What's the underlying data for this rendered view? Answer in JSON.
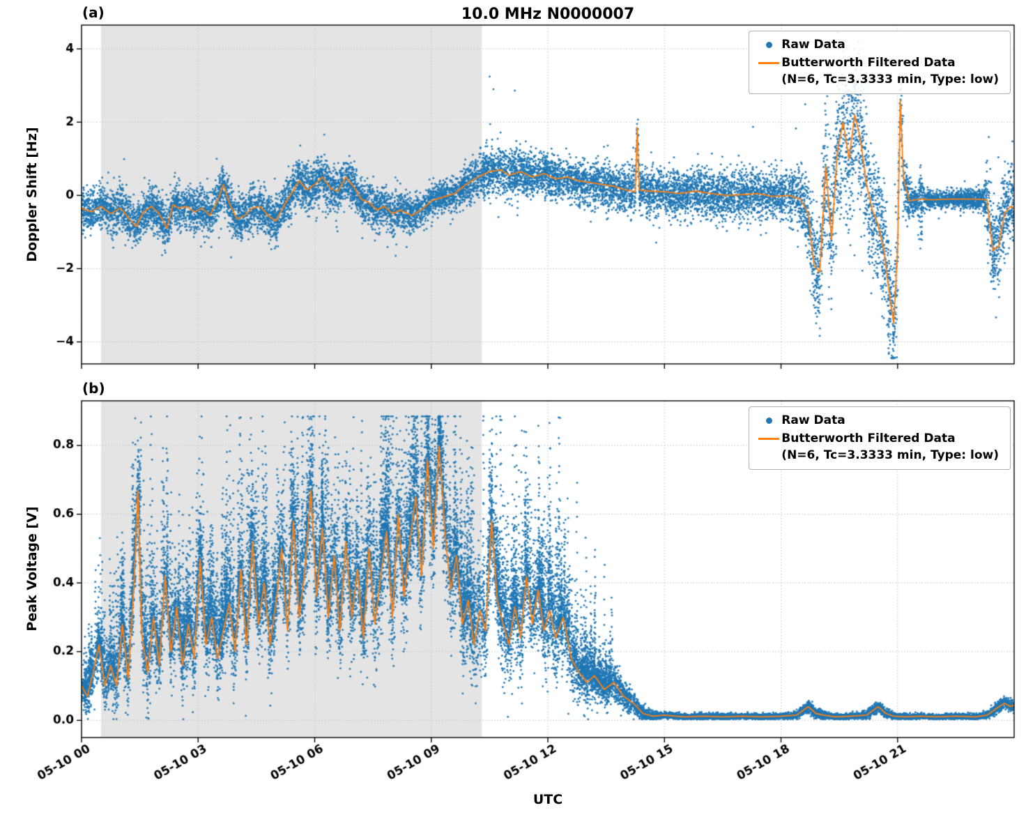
{
  "title": "10.0 MHz N0000007",
  "xlabel": "UTC",
  "legend": {
    "raw": "Raw Data",
    "filtered_label": "Butterworth Filtered Data",
    "filtered_params": "(N=6, Tc=3.3333 min, Type: low)"
  },
  "colors": {
    "raw": "#1f77b4",
    "filtered": "#ff7f0e",
    "shade": "#e4e4e4",
    "grid": "#c4c4c4",
    "axis": "#000000"
  },
  "chart_data": [
    {
      "id": "panel_a",
      "type": "scatter",
      "panel_label": "(a)",
      "ylabel": "Doppler Shift [Hz]",
      "xlabel": "UTC",
      "x_units": "hours after 05-10 00:00 UTC",
      "xlim": [
        0,
        24
      ],
      "ylim": [
        -4.6,
        4.65
      ],
      "yticks": {
        "values": [
          -4,
          -2,
          0,
          2,
          4
        ],
        "labels": [
          "−4",
          "−2",
          "0",
          "2",
          "4"
        ]
      },
      "xticks": {
        "values": [
          0,
          3,
          6,
          9,
          12,
          15,
          18,
          21
        ],
        "labels": [
          "05-10 00",
          "05-10 03",
          "05-10 06",
          "05-10 09",
          "05-10 12",
          "05-10 15",
          "05-10 18",
          "05-10 21"
        ]
      },
      "show_x_labels": false,
      "grid": true,
      "legend_position": "upper right",
      "shaded_region": [
        0.5,
        10.3
      ],
      "series_names": [
        "Raw Data",
        "Butterworth Filtered Data (N=6, Tc=3.3333 min, Type: low)"
      ],
      "filtered_line": {
        "t": [
          0,
          0.25,
          0.5,
          0.75,
          1.0,
          1.2,
          1.4,
          1.6,
          1.8,
          2.0,
          2.2,
          2.35,
          2.5,
          2.7,
          2.9,
          3.1,
          3.3,
          3.5,
          3.65,
          3.8,
          4.0,
          4.2,
          4.4,
          4.6,
          4.8,
          5.0,
          5.2,
          5.4,
          5.6,
          5.8,
          6.0,
          6.2,
          6.4,
          6.6,
          6.8,
          7.0,
          7.2,
          7.4,
          7.6,
          7.8,
          8.0,
          8.2,
          8.5,
          8.8,
          9.0,
          9.3,
          9.6,
          9.9,
          10.2,
          10.5,
          10.8,
          11.0,
          11.3,
          11.6,
          11.9,
          12.2,
          12.5,
          12.8,
          13.1,
          13.4,
          13.7,
          14.0,
          14.25,
          14.3,
          14.35,
          14.6,
          15.0,
          15.4,
          15.8,
          16.2,
          16.6,
          17.0,
          17.4,
          17.8,
          18.2,
          18.5,
          18.7,
          18.85,
          19.0,
          19.15,
          19.3,
          19.45,
          19.6,
          19.75,
          19.9,
          20.05,
          20.2,
          20.35,
          20.5,
          20.65,
          20.8,
          20.9,
          21.0,
          21.07,
          21.15,
          21.3,
          21.6,
          21.9,
          22.3,
          22.7,
          23.0,
          23.3,
          23.45,
          23.6,
          23.75,
          23.9,
          24.0
        ],
        "y": [
          -0.35,
          -0.45,
          -0.3,
          -0.5,
          -0.35,
          -0.6,
          -0.85,
          -0.45,
          -0.3,
          -0.5,
          -0.9,
          -0.25,
          -0.35,
          -0.3,
          -0.45,
          -0.35,
          -0.55,
          -0.15,
          0.3,
          -0.2,
          -0.65,
          -0.55,
          -0.35,
          -0.3,
          -0.55,
          -0.7,
          -0.3,
          0.05,
          0.4,
          0.15,
          0.3,
          0.5,
          0.2,
          0.1,
          0.5,
          0.25,
          -0.1,
          -0.2,
          -0.4,
          -0.3,
          -0.5,
          -0.4,
          -0.55,
          -0.35,
          -0.15,
          -0.05,
          0.05,
          0.3,
          0.5,
          0.65,
          0.7,
          0.55,
          0.65,
          0.5,
          0.6,
          0.45,
          0.5,
          0.4,
          0.35,
          0.3,
          0.25,
          0.15,
          0.1,
          1.85,
          0.15,
          0.12,
          0.1,
          0.05,
          0.12,
          0.05,
          0.0,
          0.02,
          0.05,
          -0.03,
          0.0,
          -0.1,
          -0.5,
          -1.9,
          -2.1,
          0.8,
          -1.2,
          1.2,
          2.0,
          1.0,
          2.2,
          1.5,
          0.3,
          -0.4,
          -0.8,
          -1.5,
          -2.8,
          -3.5,
          -1.5,
          2.6,
          0.5,
          -0.15,
          -0.1,
          -0.12,
          -0.1,
          -0.1,
          -0.1,
          -0.12,
          -1.5,
          -1.4,
          -0.5,
          -0.3,
          -0.35
        ]
      },
      "raw_noise_std": {
        "t": [
          0,
          2,
          4,
          6,
          8,
          9.5,
          10.3,
          10.8,
          11.5,
          12.5,
          13.5,
          14.2,
          14.4,
          15,
          16,
          17,
          18,
          18.6,
          19.0,
          19.5,
          20.0,
          20.5,
          21.0,
          21.25,
          21.5,
          21.6,
          21.7,
          21.9,
          22.5,
          23.2,
          23.4,
          23.6,
          23.8,
          24
        ],
        "std": [
          0.28,
          0.3,
          0.3,
          0.3,
          0.28,
          0.2,
          0.3,
          0.35,
          0.3,
          0.28,
          0.3,
          0.3,
          0.3,
          0.3,
          0.33,
          0.35,
          0.3,
          0.45,
          0.8,
          1.1,
          1.0,
          0.8,
          0.8,
          0.3,
          0.15,
          0.55,
          0.15,
          0.12,
          0.12,
          0.15,
          0.7,
          0.6,
          0.45,
          0.45
        ]
      },
      "raw_points": 14000,
      "outlier_fraction": 0.012,
      "clamp": [
        -4.45,
        4.45
      ]
    },
    {
      "id": "panel_b",
      "type": "scatter",
      "panel_label": "(b)",
      "ylabel": "Peak Voltage [V]",
      "xlabel": "UTC",
      "x_units": "hours after 05-10 00:00 UTC",
      "xlim": [
        0,
        24
      ],
      "ylim": [
        -0.05,
        0.93
      ],
      "yticks": {
        "values": [
          0.0,
          0.2,
          0.4,
          0.6,
          0.8
        ],
        "labels": [
          "0.0",
          "0.2",
          "0.4",
          "0.6",
          "0.8"
        ]
      },
      "xticks": {
        "values": [
          0,
          3,
          6,
          9,
          12,
          15,
          18,
          21
        ],
        "labels": [
          "05-10 00",
          "05-10 03",
          "05-10 06",
          "05-10 09",
          "05-10 12",
          "05-10 15",
          "05-10 18",
          "05-10 21"
        ]
      },
      "show_x_labels": true,
      "grid": true,
      "legend_position": "upper right",
      "shaded_region": [
        0.5,
        10.3
      ],
      "series_names": [
        "Raw Data",
        "Butterworth Filtered Data (N=6, Tc=3.3333 min, Type: low)"
      ],
      "filtered_line": {
        "t": [
          0,
          0.15,
          0.3,
          0.45,
          0.6,
          0.75,
          0.9,
          1.05,
          1.2,
          1.35,
          1.45,
          1.55,
          1.7,
          1.85,
          2.0,
          2.15,
          2.3,
          2.45,
          2.6,
          2.75,
          2.9,
          3.05,
          3.2,
          3.35,
          3.5,
          3.65,
          3.8,
          3.95,
          4.1,
          4.25,
          4.4,
          4.55,
          4.7,
          4.85,
          5.0,
          5.15,
          5.3,
          5.45,
          5.6,
          5.75,
          5.9,
          6.05,
          6.2,
          6.35,
          6.5,
          6.65,
          6.8,
          6.95,
          7.1,
          7.25,
          7.4,
          7.55,
          7.7,
          7.85,
          8.0,
          8.15,
          8.3,
          8.45,
          8.6,
          8.75,
          8.9,
          9.05,
          9.2,
          9.35,
          9.5,
          9.65,
          9.8,
          9.95,
          10.1,
          10.25,
          10.4,
          10.55,
          10.7,
          10.85,
          11.0,
          11.15,
          11.3,
          11.45,
          11.6,
          11.75,
          11.9,
          12.05,
          12.2,
          12.4,
          12.6,
          12.8,
          13.0,
          13.2,
          13.45,
          13.7,
          13.95,
          14.2,
          14.45,
          14.7,
          15.0,
          15.5,
          16.0,
          16.5,
          17.0,
          17.5,
          18.0,
          18.4,
          18.7,
          18.9,
          19.1,
          19.4,
          19.8,
          20.2,
          20.5,
          20.7,
          20.9,
          21.2,
          21.6,
          22.0,
          22.5,
          23.0,
          23.3,
          23.55,
          23.75,
          23.9,
          24.0
        ],
        "y": [
          0.1,
          0.07,
          0.14,
          0.22,
          0.1,
          0.16,
          0.1,
          0.28,
          0.12,
          0.4,
          0.67,
          0.25,
          0.14,
          0.3,
          0.16,
          0.42,
          0.2,
          0.33,
          0.16,
          0.28,
          0.18,
          0.47,
          0.22,
          0.3,
          0.18,
          0.26,
          0.34,
          0.2,
          0.44,
          0.22,
          0.52,
          0.28,
          0.4,
          0.22,
          0.34,
          0.5,
          0.26,
          0.58,
          0.3,
          0.44,
          0.67,
          0.36,
          0.56,
          0.3,
          0.48,
          0.26,
          0.52,
          0.3,
          0.44,
          0.24,
          0.5,
          0.28,
          0.42,
          0.55,
          0.3,
          0.6,
          0.36,
          0.52,
          0.65,
          0.42,
          0.76,
          0.5,
          0.8,
          0.55,
          0.38,
          0.48,
          0.28,
          0.35,
          0.22,
          0.32,
          0.26,
          0.58,
          0.35,
          0.28,
          0.22,
          0.33,
          0.24,
          0.42,
          0.28,
          0.38,
          0.26,
          0.32,
          0.24,
          0.3,
          0.18,
          0.14,
          0.11,
          0.13,
          0.09,
          0.11,
          0.07,
          0.05,
          0.02,
          0.012,
          0.015,
          0.01,
          0.012,
          0.01,
          0.012,
          0.01,
          0.012,
          0.015,
          0.04,
          0.02,
          0.015,
          0.01,
          0.012,
          0.015,
          0.04,
          0.02,
          0.012,
          0.01,
          0.012,
          0.01,
          0.012,
          0.01,
          0.015,
          0.035,
          0.05,
          0.04,
          0.045
        ]
      },
      "raw_noise_std": {
        "t": [
          0,
          0.5,
          1,
          1.5,
          2,
          3,
          4,
          5,
          6,
          7,
          8,
          9,
          9.5,
          10,
          10.5,
          11,
          11.5,
          12,
          12.5,
          13,
          13.5,
          14,
          14.4,
          14.8,
          15,
          16,
          17,
          18,
          18.5,
          18.8,
          19.2,
          20,
          20.5,
          20.8,
          21.5,
          22.5,
          23.2,
          23.6,
          24
        ],
        "std": [
          0.04,
          0.05,
          0.07,
          0.09,
          0.08,
          0.08,
          0.09,
          0.09,
          0.1,
          0.1,
          0.11,
          0.12,
          0.11,
          0.1,
          0.1,
          0.1,
          0.1,
          0.09,
          0.08,
          0.05,
          0.04,
          0.03,
          0.015,
          0.008,
          0.006,
          0.006,
          0.006,
          0.006,
          0.008,
          0.012,
          0.006,
          0.006,
          0.012,
          0.008,
          0.005,
          0.005,
          0.006,
          0.012,
          0.012
        ]
      },
      "raw_points": 15000,
      "burst_count": 1200,
      "burst_t_max": 13.6,
      "clamp": [
        0.003,
        0.885
      ]
    }
  ]
}
